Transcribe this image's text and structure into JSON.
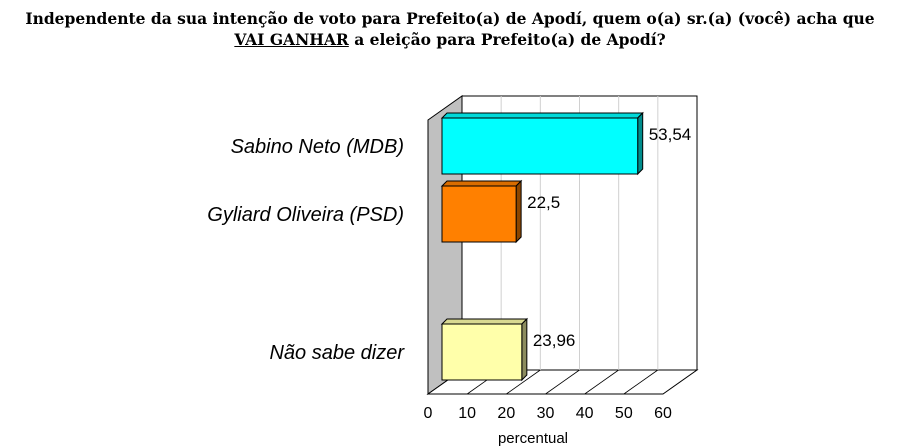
{
  "title": {
    "line1": "Independente da sua intenção de voto para Prefeito(a) de Apodí, quem o(a) sr.(a) (você) acha que",
    "line2_underlined": "VAI GANHAR",
    "line2_rest": " a eleição para Prefeito(a) de Apodí?"
  },
  "chart_data": {
    "type": "bar",
    "orientation": "horizontal",
    "three_d": true,
    "categories": [
      "Sabino Neto (MDB)",
      "Gyliard Oliveira (PSD)",
      "Não sabe dizer"
    ],
    "values": [
      53.54,
      22.5,
      23.96
    ],
    "value_labels": [
      "53,54",
      "22,5",
      "23,96"
    ],
    "colors": [
      "#00FFFF",
      "#FF8000",
      "#FFFFAA"
    ],
    "xlabel": "percentual",
    "xlim": [
      0,
      60
    ],
    "xticks": [
      0,
      10,
      20,
      30,
      40,
      50,
      60
    ],
    "grid": true
  }
}
